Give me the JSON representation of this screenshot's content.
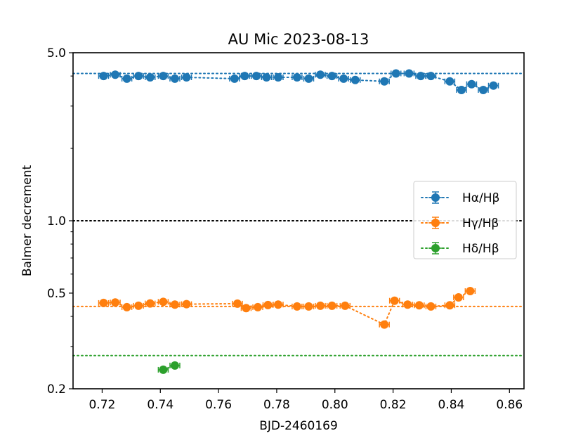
{
  "chart_data": {
    "type": "scatter",
    "title": "AU Mic 2023-08-13",
    "xlabel": "BJD-2460169",
    "ylabel": "Balmer decrement",
    "xlim": [
      0.71,
      0.865
    ],
    "ylim": [
      0.2,
      5.0
    ],
    "yscale": "log",
    "grid": false,
    "legend_position": "center-right",
    "x_ticks": [
      {
        "value": 0.72,
        "label": "0.72"
      },
      {
        "value": 0.74,
        "label": "0.74"
      },
      {
        "value": 0.76,
        "label": "0.76"
      },
      {
        "value": 0.78,
        "label": "0.78"
      },
      {
        "value": 0.8,
        "label": "0.80"
      },
      {
        "value": 0.82,
        "label": "0.82"
      },
      {
        "value": 0.84,
        "label": "0.84"
      },
      {
        "value": 0.86,
        "label": "0.86"
      }
    ],
    "y_ticks": [
      {
        "value": 0.2,
        "label": "0.2"
      },
      {
        "value": 0.5,
        "label": "0.5"
      },
      {
        "value": 1.0,
        "label": "1.0"
      },
      {
        "value": 5.0,
        "label": "5.0"
      }
    ],
    "y_minor_ticks": [
      0.3,
      0.4,
      0.6,
      0.7,
      0.8,
      0.9,
      2,
      3,
      4
    ],
    "reference_lines": [
      {
        "y": 4.1,
        "color": "#1f77b4"
      },
      {
        "y": 1.0,
        "color": "#000000"
      },
      {
        "y": 0.44,
        "color": "#ff7f0e"
      },
      {
        "y": 0.275,
        "color": "#2ca02c"
      }
    ],
    "series": [
      {
        "name": "Hα/Hβ",
        "color": "#1f77b4",
        "points": [
          {
            "x": 0.7205,
            "y": 4.0
          },
          {
            "x": 0.7245,
            "y": 4.05
          },
          {
            "x": 0.7285,
            "y": 3.9
          },
          {
            "x": 0.7325,
            "y": 4.0
          },
          {
            "x": 0.7365,
            "y": 3.95
          },
          {
            "x": 0.741,
            "y": 4.0
          },
          {
            "x": 0.745,
            "y": 3.9
          },
          {
            "x": 0.749,
            "y": 3.95
          },
          {
            "x": 0.7655,
            "y": 3.9
          },
          {
            "x": 0.769,
            "y": 4.0
          },
          {
            "x": 0.773,
            "y": 4.0
          },
          {
            "x": 0.7765,
            "y": 3.95
          },
          {
            "x": 0.7805,
            "y": 3.95
          },
          {
            "x": 0.787,
            "y": 3.95
          },
          {
            "x": 0.791,
            "y": 3.9
          },
          {
            "x": 0.795,
            "y": 4.05
          },
          {
            "x": 0.799,
            "y": 4.0
          },
          {
            "x": 0.803,
            "y": 3.9
          },
          {
            "x": 0.807,
            "y": 3.85
          },
          {
            "x": 0.817,
            "y": 3.8
          },
          {
            "x": 0.821,
            "y": 4.1
          },
          {
            "x": 0.8255,
            "y": 4.1
          },
          {
            "x": 0.8295,
            "y": 4.0
          },
          {
            "x": 0.833,
            "y": 4.0
          },
          {
            "x": 0.8395,
            "y": 3.8
          },
          {
            "x": 0.8435,
            "y": 3.5
          },
          {
            "x": 0.847,
            "y": 3.7
          },
          {
            "x": 0.851,
            "y": 3.5
          },
          {
            "x": 0.8545,
            "y": 3.65
          }
        ]
      },
      {
        "name": "Hγ/Hβ",
        "color": "#ff7f0e",
        "points": [
          {
            "x": 0.7205,
            "y": 0.455
          },
          {
            "x": 0.7245,
            "y": 0.457
          },
          {
            "x": 0.7285,
            "y": 0.437
          },
          {
            "x": 0.7325,
            "y": 0.443
          },
          {
            "x": 0.7365,
            "y": 0.453
          },
          {
            "x": 0.741,
            "y": 0.46
          },
          {
            "x": 0.745,
            "y": 0.448
          },
          {
            "x": 0.749,
            "y": 0.45
          },
          {
            "x": 0.7665,
            "y": 0.452
          },
          {
            "x": 0.7695,
            "y": 0.433
          },
          {
            "x": 0.7735,
            "y": 0.437
          },
          {
            "x": 0.777,
            "y": 0.446
          },
          {
            "x": 0.7805,
            "y": 0.448
          },
          {
            "x": 0.787,
            "y": 0.44
          },
          {
            "x": 0.791,
            "y": 0.44
          },
          {
            "x": 0.795,
            "y": 0.443
          },
          {
            "x": 0.799,
            "y": 0.443
          },
          {
            "x": 0.8035,
            "y": 0.443
          },
          {
            "x": 0.817,
            "y": 0.37
          },
          {
            "x": 0.8205,
            "y": 0.465
          },
          {
            "x": 0.825,
            "y": 0.448
          },
          {
            "x": 0.829,
            "y": 0.445
          },
          {
            "x": 0.833,
            "y": 0.44
          },
          {
            "x": 0.8395,
            "y": 0.445
          },
          {
            "x": 0.8425,
            "y": 0.48
          },
          {
            "x": 0.8465,
            "y": 0.51
          }
        ]
      },
      {
        "name": "Hδ/Hβ",
        "color": "#2ca02c",
        "points": [
          {
            "x": 0.741,
            "y": 0.24
          },
          {
            "x": 0.745,
            "y": 0.25
          }
        ]
      }
    ]
  }
}
